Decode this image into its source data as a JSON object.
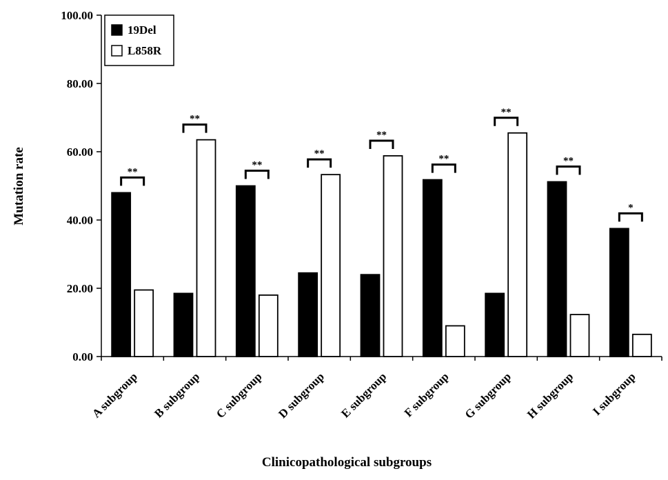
{
  "chart_data": {
    "type": "bar",
    "title": "",
    "xlabel": "Clinicopathological subgroups",
    "ylabel": "Mutation rate",
    "ylim": [
      0,
      100
    ],
    "yticks": [
      "0.00",
      "20.00",
      "40.00",
      "60.00",
      "80.00",
      "100.00"
    ],
    "categories": [
      "A subgroup",
      "B subgroup",
      "C subgroup",
      "D subgroup",
      "E subgroup",
      "F subgroup",
      "G subgroup",
      "H subgroup",
      "I subgroup"
    ],
    "series": [
      {
        "name": "19Del",
        "color": "#000000",
        "values": [
          48.0,
          18.5,
          50.0,
          24.5,
          24.0,
          51.8,
          18.5,
          51.2,
          37.5
        ]
      },
      {
        "name": "L858R",
        "color": "#ffffff",
        "values": [
          19.5,
          63.5,
          18.0,
          53.3,
          58.8,
          9.0,
          65.5,
          12.3,
          6.5
        ]
      }
    ],
    "significance": [
      "**",
      "**",
      "**",
      "**",
      "**",
      "**",
      "**",
      "**",
      "*"
    ],
    "legend_position": "top-left",
    "grid": false
  }
}
